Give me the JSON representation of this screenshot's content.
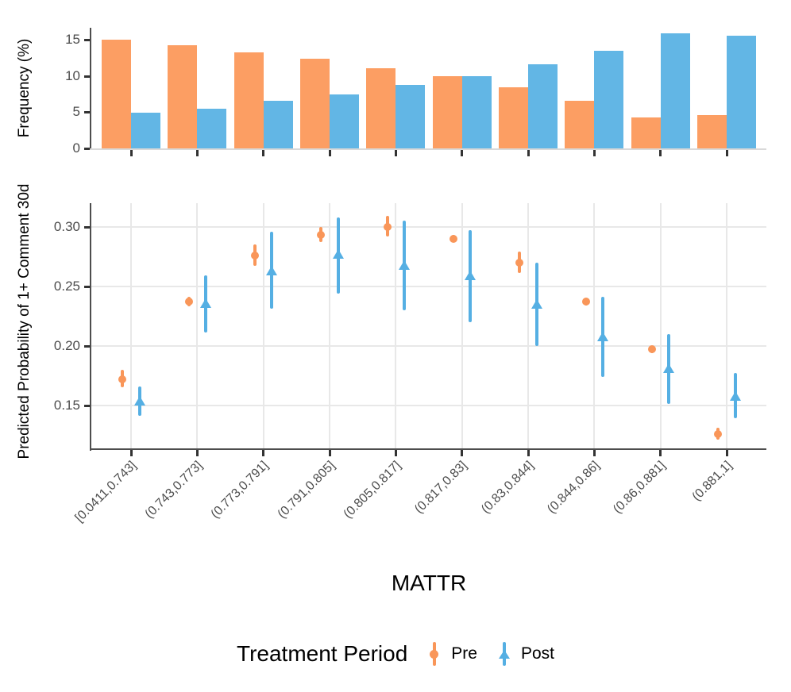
{
  "colors": {
    "pre_bar": "#FC9E63",
    "post_bar": "#62B6E5",
    "pre_point": "#F99659",
    "post_point": "#55AFE3",
    "grid": "#E8E8E8",
    "axis_line": "#4D4D4D",
    "panel_baseline_light": "#D9D9D9",
    "tick_mark": "#333333",
    "tick_text": "#4D4D4D"
  },
  "legend": {
    "title": "Treatment Period",
    "position": "bottom",
    "items": [
      {
        "label": "Pre",
        "color": "#F99659",
        "shape": "circle"
      },
      {
        "label": "Post",
        "color": "#55AFE3",
        "shape": "triangle"
      }
    ]
  },
  "chart_data": [
    {
      "type": "bar",
      "panel": "top",
      "title": "",
      "xlabel": "",
      "ylabel": "Frequency (%)",
      "grid": false,
      "categories": [
        "[0.0411,0.743]",
        "(0.743,0.773]",
        "(0.773,0.791]",
        "(0.791,0.805]",
        "(0.805,0.817]",
        "(0.817,0.83]",
        "(0.83,0.844]",
        "(0.844,0.86]",
        "(0.86,0.881]",
        "(0.881,1]"
      ],
      "yticks": [
        0,
        5,
        10,
        15
      ],
      "ytick_labels": [
        "0",
        "5",
        "10",
        "15"
      ],
      "ylim": [
        0,
        16.7
      ],
      "series": [
        {
          "name": "Pre",
          "color": "#FC9E63",
          "values": [
            15.0,
            14.3,
            13.3,
            12.4,
            11.1,
            10.0,
            8.5,
            6.6,
            4.3,
            4.6
          ]
        },
        {
          "name": "Post",
          "color": "#62B6E5",
          "values": [
            4.9,
            5.5,
            6.6,
            7.5,
            8.8,
            10.0,
            11.6,
            13.5,
            15.9,
            15.6
          ]
        }
      ]
    },
    {
      "type": "pointrange",
      "panel": "bottom",
      "title": "",
      "xlabel": "MATTR",
      "ylabel": "Predicted Probability of 1+ Comment 30d",
      "grid": true,
      "categories": [
        "[0.0411,0.743]",
        "(0.743,0.773]",
        "(0.773,0.791]",
        "(0.791,0.805]",
        "(0.805,0.817]",
        "(0.817,0.83]",
        "(0.83,0.844]",
        "(0.844,0.86]",
        "(0.86,0.881]",
        "(0.881,1]"
      ],
      "yticks": [
        0.15,
        0.2,
        0.25,
        0.3
      ],
      "ytick_labels": [
        "0.15",
        "0.20",
        "0.25",
        "0.30"
      ],
      "ylim": [
        0.1133,
        0.32
      ],
      "series": [
        {
          "name": "Pre",
          "color": "#F99659",
          "shape": "circle",
          "points": [
            {
              "y": 0.172,
              "lo": 0.165,
              "hi": 0.18
            },
            {
              "y": 0.237,
              "lo": 0.233,
              "hi": 0.241
            },
            {
              "y": 0.276,
              "lo": 0.267,
              "hi": 0.285
            },
            {
              "y": 0.293,
              "lo": 0.287,
              "hi": 0.3
            },
            {
              "y": 0.3,
              "lo": 0.292,
              "hi": 0.309
            },
            {
              "y": 0.29,
              "lo": 0.287,
              "hi": 0.293
            },
            {
              "y": 0.27,
              "lo": 0.261,
              "hi": 0.279
            },
            {
              "y": 0.237,
              "lo": 0.234,
              "hi": 0.24
            },
            {
              "y": 0.197,
              "lo": 0.194,
              "hi": 0.2
            },
            {
              "y": 0.126,
              "lo": 0.121,
              "hi": 0.131
            }
          ]
        },
        {
          "name": "Post",
          "color": "#55AFE3",
          "shape": "triangle",
          "points": [
            {
              "y": 0.154,
              "lo": 0.141,
              "hi": 0.166
            },
            {
              "y": 0.236,
              "lo": 0.211,
              "hi": 0.259
            },
            {
              "y": 0.263,
              "lo": 0.231,
              "hi": 0.296
            },
            {
              "y": 0.277,
              "lo": 0.244,
              "hi": 0.308
            },
            {
              "y": 0.268,
              "lo": 0.23,
              "hi": 0.305
            },
            {
              "y": 0.259,
              "lo": 0.22,
              "hi": 0.297
            },
            {
              "y": 0.235,
              "lo": 0.2,
              "hi": 0.27
            },
            {
              "y": 0.208,
              "lo": 0.174,
              "hi": 0.241
            },
            {
              "y": 0.181,
              "lo": 0.151,
              "hi": 0.21
            },
            {
              "y": 0.158,
              "lo": 0.139,
              "hi": 0.177
            }
          ]
        }
      ]
    }
  ]
}
